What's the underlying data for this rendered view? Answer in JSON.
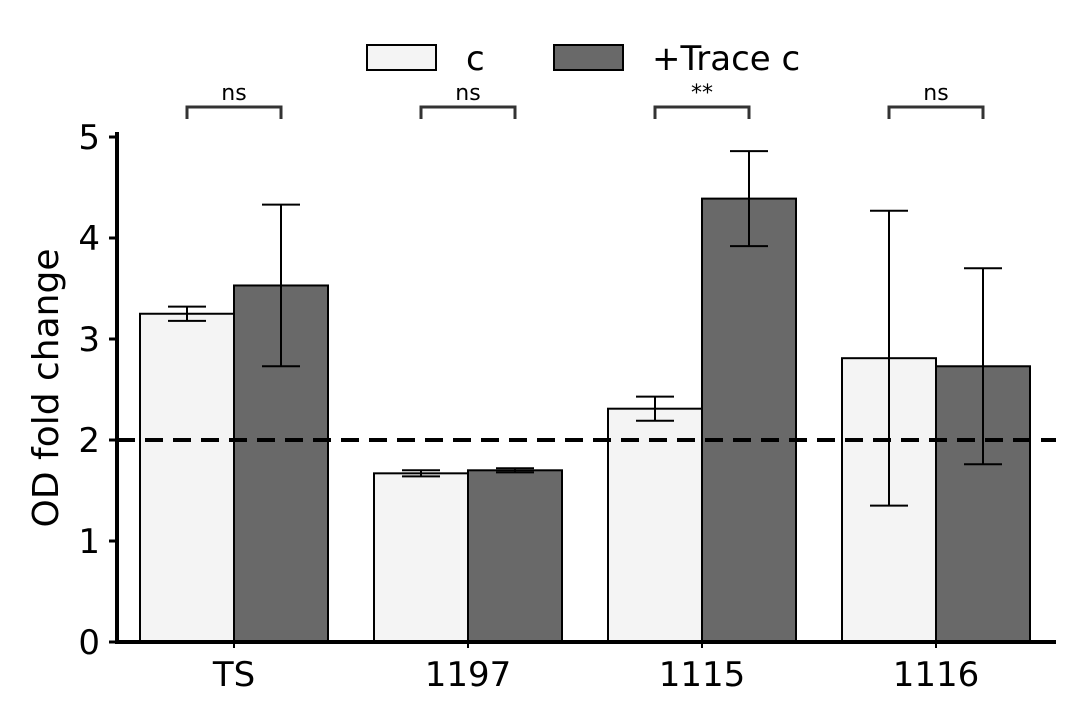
{
  "chart_data": {
    "type": "bar",
    "ylabel": "OD fold change",
    "categories": [
      "TS",
      "1197",
      "1115",
      "1116"
    ],
    "ylim": [
      0,
      5
    ],
    "yticks": [
      "0",
      "1",
      "2",
      "3",
      "4",
      "5"
    ],
    "series": [
      {
        "name": "c",
        "color": "#f4f4f4",
        "values": [
          3.25,
          1.67,
          2.31,
          2.81
        ],
        "errors": [
          0.07,
          0.03,
          0.12,
          1.46
        ]
      },
      {
        "name": "+Trace c",
        "color": "#696969",
        "values": [
          3.53,
          1.7,
          4.39,
          2.73
        ],
        "errors": [
          0.8,
          0.02,
          0.47,
          0.97
        ]
      }
    ],
    "significance": [
      "ns",
      "ns",
      "**",
      "ns"
    ],
    "reference_line": {
      "y": 2,
      "style": "dashed"
    },
    "legend_position": "top"
  }
}
